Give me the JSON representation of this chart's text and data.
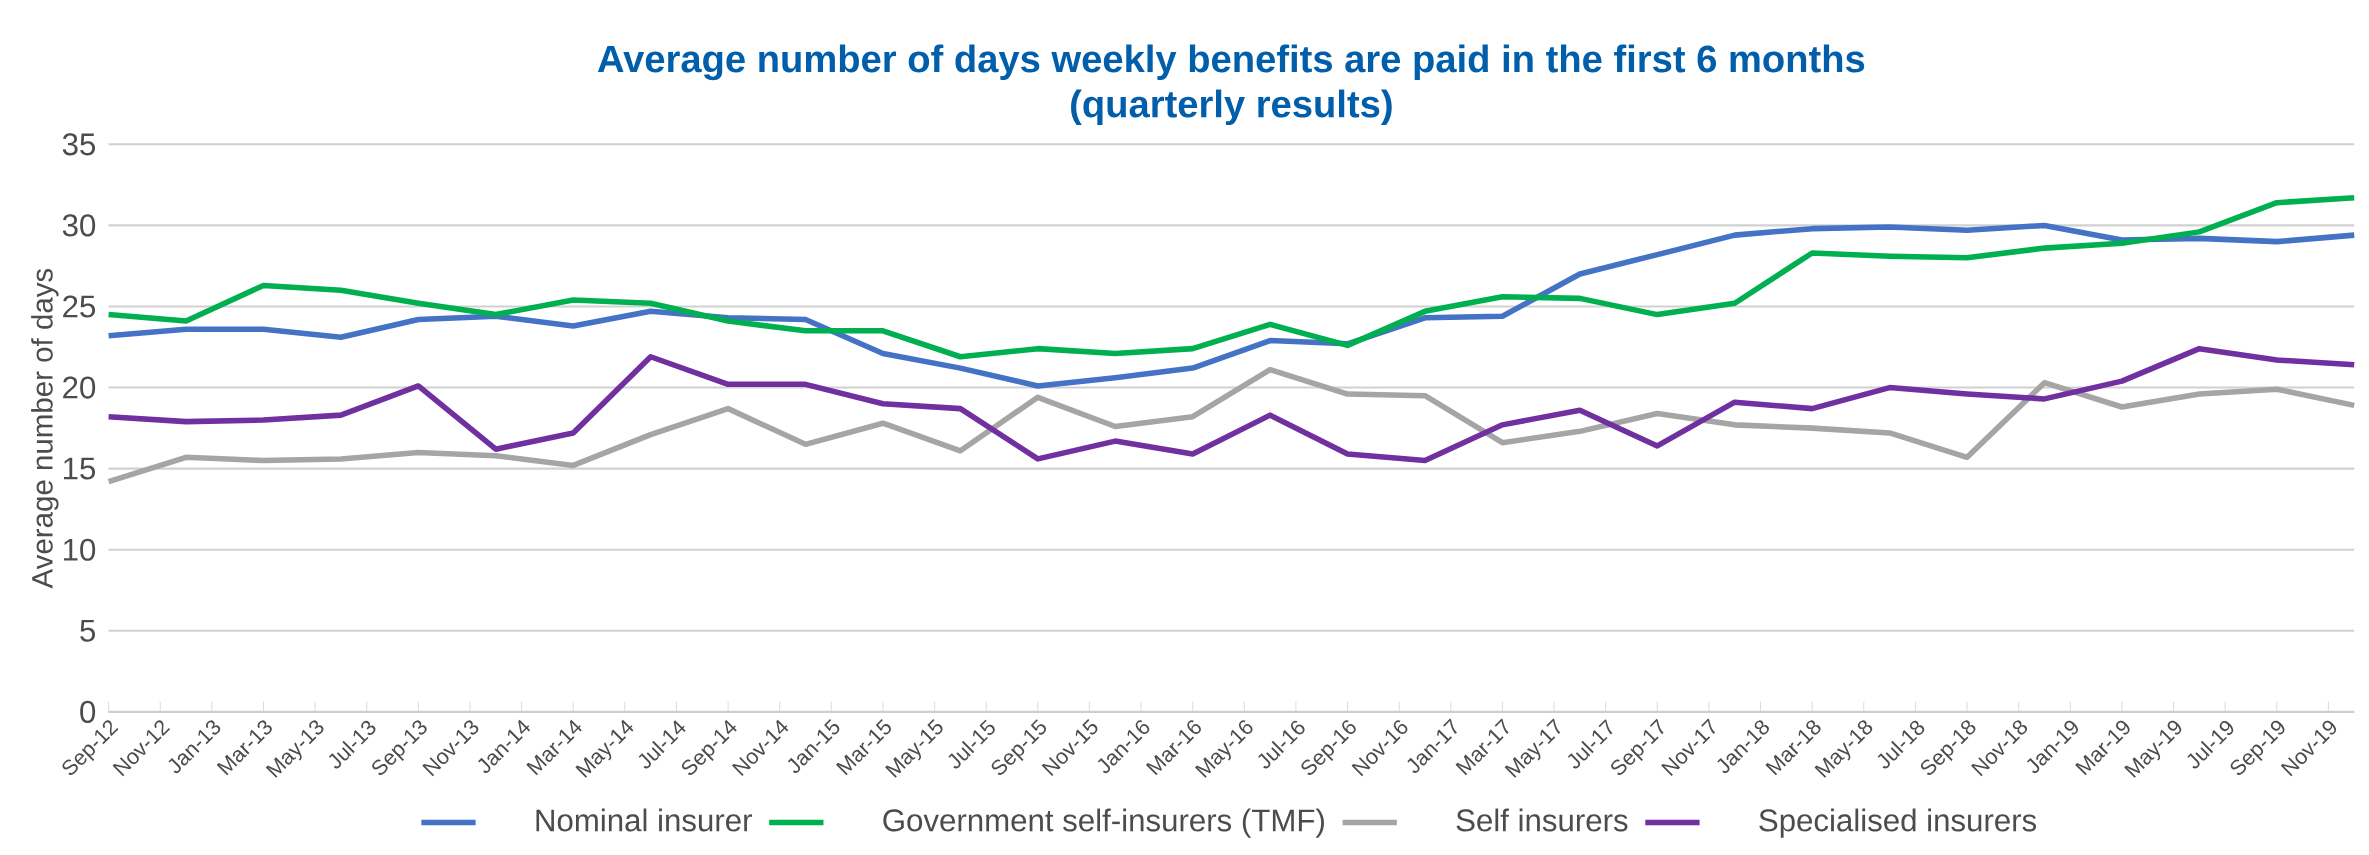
{
  "chart_data": {
    "type": "line",
    "title": "Average number of days weekly benefits are paid in the first 6 months",
    "subtitle": "(quarterly results)",
    "ylabel": "Average number of days",
    "x": [
      "2012-09",
      "2012-12",
      "2013-03",
      "2013-06",
      "2013-09",
      "2013-12",
      "2014-03",
      "2014-06",
      "2014-09",
      "2014-12",
      "2015-03",
      "2015-06",
      "2015-09",
      "2015-12",
      "2016-03",
      "2016-06",
      "2016-09",
      "2016-12",
      "2017-03",
      "2017-06",
      "2017-09",
      "2017-12",
      "2018-03",
      "2018-06",
      "2018-09",
      "2018-12",
      "2019-03",
      "2019-06",
      "2019-09",
      "2019-12"
    ],
    "series": [
      {
        "name": "Nominal insurer",
        "color": "#4472c4",
        "values": [
          23.2,
          23.6,
          23.6,
          23.1,
          24.2,
          24.4,
          23.8,
          24.7,
          24.3,
          24.2,
          22.1,
          21.2,
          20.1,
          20.6,
          21.2,
          22.9,
          22.7,
          24.3,
          24.4,
          27.0,
          28.2,
          29.4,
          29.8,
          29.9,
          29.7,
          30.0,
          29.1,
          29.2,
          29.0,
          29.4
        ]
      },
      {
        "name": "Government self-insurers (TMF)",
        "color": "#00b050",
        "values": [
          24.5,
          24.1,
          26.3,
          26.0,
          25.2,
          24.5,
          25.4,
          25.2,
          24.1,
          23.5,
          23.5,
          21.9,
          22.4,
          22.1,
          22.4,
          23.9,
          22.6,
          24.7,
          25.6,
          25.5,
          24.5,
          25.2,
          28.3,
          28.1,
          28.0,
          28.6,
          28.9,
          29.6,
          31.4,
          31.7
        ]
      },
      {
        "name": "Self insurers",
        "color": "#a5a5a5",
        "values": [
          14.2,
          15.7,
          15.5,
          15.6,
          16.0,
          15.8,
          15.2,
          17.1,
          18.7,
          16.5,
          17.8,
          16.1,
          19.4,
          17.6,
          18.2,
          21.1,
          19.6,
          19.5,
          16.6,
          17.3,
          18.4,
          17.7,
          17.5,
          17.2,
          15.7,
          20.3,
          18.8,
          19.6,
          19.9,
          18.9
        ]
      },
      {
        "name": "Specialised insurers",
        "color": "#7030a0",
        "values": [
          18.2,
          17.9,
          18.0,
          18.3,
          20.1,
          16.2,
          17.2,
          21.9,
          20.2,
          20.2,
          19.0,
          18.7,
          15.6,
          16.7,
          15.9,
          18.3,
          15.9,
          15.5,
          17.7,
          18.6,
          16.4,
          19.1,
          18.7,
          20.0,
          19.6,
          19.3,
          20.4,
          22.4,
          21.7,
          21.4
        ]
      }
    ],
    "xlim": [
      "2012-09",
      "2019-12"
    ],
    "xticks": [
      {
        "value": "2012-09",
        "label": "Sep-12"
      },
      {
        "value": "2012-11",
        "label": "Nov-12"
      },
      {
        "value": "2013-01",
        "label": "Jan-13"
      },
      {
        "value": "2013-03",
        "label": "Mar-13"
      },
      {
        "value": "2013-05",
        "label": "May-13"
      },
      {
        "value": "2013-07",
        "label": "Jul-13"
      },
      {
        "value": "2013-09",
        "label": "Sep-13"
      },
      {
        "value": "2013-11",
        "label": "Nov-13"
      },
      {
        "value": "2014-01",
        "label": "Jan-14"
      },
      {
        "value": "2014-03",
        "label": "Mar-14"
      },
      {
        "value": "2014-05",
        "label": "May-14"
      },
      {
        "value": "2014-07",
        "label": "Jul-14"
      },
      {
        "value": "2014-09",
        "label": "Sep-14"
      },
      {
        "value": "2014-11",
        "label": "Nov-14"
      },
      {
        "value": "2015-01",
        "label": "Jan-15"
      },
      {
        "value": "2015-03",
        "label": "Mar-15"
      },
      {
        "value": "2015-05",
        "label": "May-15"
      },
      {
        "value": "2015-07",
        "label": "Jul-15"
      },
      {
        "value": "2015-09",
        "label": "Sep-15"
      },
      {
        "value": "2015-11",
        "label": "Nov-15"
      },
      {
        "value": "2016-01",
        "label": "Jan-16"
      },
      {
        "value": "2016-03",
        "label": "Mar-16"
      },
      {
        "value": "2016-05",
        "label": "May-16"
      },
      {
        "value": "2016-07",
        "label": "Jul-16"
      },
      {
        "value": "2016-09",
        "label": "Sep-16"
      },
      {
        "value": "2016-11",
        "label": "Nov-16"
      },
      {
        "value": "2017-01",
        "label": "Jan-17"
      },
      {
        "value": "2017-03",
        "label": "Mar-17"
      },
      {
        "value": "2017-05",
        "label": "May-17"
      },
      {
        "value": "2017-07",
        "label": "Jul-17"
      },
      {
        "value": "2017-09",
        "label": "Sep-17"
      },
      {
        "value": "2017-11",
        "label": "Nov-17"
      },
      {
        "value": "2018-01",
        "label": "Jan-18"
      },
      {
        "value": "2018-03",
        "label": "Mar-18"
      },
      {
        "value": "2018-05",
        "label": "May-18"
      },
      {
        "value": "2018-07",
        "label": "Jul-18"
      },
      {
        "value": "2018-09",
        "label": "Sep-18"
      },
      {
        "value": "2018-11",
        "label": "Nov-18"
      },
      {
        "value": "2019-01",
        "label": "Jan-19"
      },
      {
        "value": "2019-03",
        "label": "Mar-19"
      },
      {
        "value": "2019-05",
        "label": "May-19"
      },
      {
        "value": "2019-07",
        "label": "Jul-19"
      },
      {
        "value": "2019-09",
        "label": "Sep-19"
      },
      {
        "value": "2019-11",
        "label": "Nov-19"
      }
    ],
    "ylim": [
      0,
      35
    ],
    "yticks": [
      0,
      5,
      10,
      15,
      20,
      25,
      30,
      35
    ],
    "grid": "y",
    "legend": "bottom",
    "marker": "none",
    "line_style": "solid"
  }
}
